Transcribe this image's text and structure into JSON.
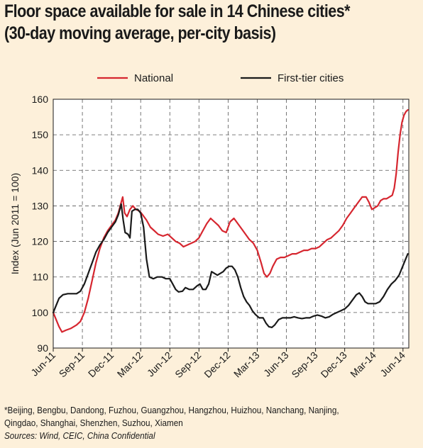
{
  "header": {
    "title_line1": "Floor space available for sale in 14 Chinese cities*",
    "title_line2": "(30-day moving average, per-city basis)"
  },
  "footer": {
    "footnote_line1": "*Beijing, Bengbu, Dandong, Fuzhou, Guangzhou, Hangzhou, Huizhou, Nanchang, Nanjing,",
    "footnote_line2": "Qingdao, Shanghai, Shenzhen, Suzhou, Xiamen",
    "sources": "Sources: Wind, CEIC, China Confidential"
  },
  "colors": {
    "national": "#d6262f",
    "first_tier": "#1a1a1a",
    "background": "#fdf0da"
  },
  "chart_data": {
    "type": "line",
    "title": "Floor space available for sale in 14 Chinese cities*",
    "subtitle": "(30-day moving average, per-city basis)",
    "ylabel": "Index (Jun 2011 = 100)",
    "xlabel": "",
    "ylim": [
      90,
      160
    ],
    "yticks": [
      90,
      100,
      110,
      120,
      130,
      140,
      150,
      160
    ],
    "xlim": [
      0,
      36.6
    ],
    "xticks": [
      {
        "label": "Jun-11",
        "x": 0
      },
      {
        "label": "Sep-11",
        "x": 3
      },
      {
        "label": "Dec-11",
        "x": 6
      },
      {
        "label": "Mar-12",
        "x": 9
      },
      {
        "label": "Jun-12",
        "x": 12
      },
      {
        "label": "Sep-12",
        "x": 15
      },
      {
        "label": "Dec-12",
        "x": 18
      },
      {
        "label": "Mar-13",
        "x": 21
      },
      {
        "label": "Jun-13",
        "x": 24
      },
      {
        "label": "Sep-13",
        "x": 27
      },
      {
        "label": "Dec-13",
        "x": 30
      },
      {
        "label": "Mar-14",
        "x": 33
      },
      {
        "label": "Jun-14",
        "x": 36
      }
    ],
    "grid": true,
    "legend_position": "top",
    "series": [
      {
        "name": "National",
        "color": "#d6262f",
        "points": [
          [
            0,
            100
          ],
          [
            0.3,
            98
          ],
          [
            0.6,
            96
          ],
          [
            0.9,
            94.5
          ],
          [
            1.3,
            95
          ],
          [
            1.8,
            95.5
          ],
          [
            2.4,
            96.5
          ],
          [
            2.8,
            97.5
          ],
          [
            3.2,
            100
          ],
          [
            3.6,
            104
          ],
          [
            4,
            109
          ],
          [
            4.4,
            114
          ],
          [
            4.8,
            118
          ],
          [
            5.2,
            121
          ],
          [
            5.6,
            123
          ],
          [
            6,
            124.5
          ],
          [
            6.4,
            126
          ],
          [
            6.7,
            128
          ],
          [
            7.0,
            131
          ],
          [
            7.15,
            132.5
          ],
          [
            7.35,
            128
          ],
          [
            7.6,
            127
          ],
          [
            7.9,
            129
          ],
          [
            8.2,
            130
          ],
          [
            8.5,
            129
          ],
          [
            8.9,
            128.5
          ],
          [
            9.2,
            127.5
          ],
          [
            9.6,
            126
          ],
          [
            10,
            124
          ],
          [
            10.4,
            123
          ],
          [
            10.8,
            122
          ],
          [
            11.3,
            121.5
          ],
          [
            11.8,
            122
          ],
          [
            12.2,
            121
          ],
          [
            12.6,
            120
          ],
          [
            13,
            119.5
          ],
          [
            13.4,
            118.5
          ],
          [
            13.8,
            119
          ],
          [
            14.2,
            119.5
          ],
          [
            14.6,
            120
          ],
          [
            15,
            121
          ],
          [
            15.4,
            123
          ],
          [
            15.8,
            125
          ],
          [
            16.2,
            126.5
          ],
          [
            16.6,
            125.5
          ],
          [
            17,
            124.5
          ],
          [
            17.4,
            123
          ],
          [
            17.8,
            122.5
          ],
          [
            18.2,
            125.5
          ],
          [
            18.6,
            126.5
          ],
          [
            19,
            125
          ],
          [
            19.4,
            123.5
          ],
          [
            19.8,
            122
          ],
          [
            20.2,
            120.5
          ],
          [
            20.6,
            119.5
          ],
          [
            21,
            117.5
          ],
          [
            21.4,
            114
          ],
          [
            21.7,
            111
          ],
          [
            22,
            110
          ],
          [
            22.3,
            111
          ],
          [
            22.6,
            113
          ],
          [
            23,
            115
          ],
          [
            23.4,
            115.5
          ],
          [
            23.8,
            115.5
          ],
          [
            24.2,
            116
          ],
          [
            24.6,
            116.5
          ],
          [
            25,
            116.5
          ],
          [
            25.4,
            117
          ],
          [
            25.8,
            117.5
          ],
          [
            26.2,
            117.5
          ],
          [
            26.6,
            118
          ],
          [
            27,
            118
          ],
          [
            27.4,
            118.5
          ],
          [
            27.8,
            119.5
          ],
          [
            28.2,
            120.5
          ],
          [
            28.6,
            121
          ],
          [
            29,
            122
          ],
          [
            29.4,
            123
          ],
          [
            29.8,
            124.5
          ],
          [
            30.2,
            126.5
          ],
          [
            30.6,
            128
          ],
          [
            31,
            129.5
          ],
          [
            31.4,
            131
          ],
          [
            31.8,
            132.5
          ],
          [
            32.2,
            132.5
          ],
          [
            32.5,
            131
          ],
          [
            32.8,
            129
          ],
          [
            33.1,
            129.5
          ],
          [
            33.4,
            130
          ],
          [
            33.7,
            131.5
          ],
          [
            34,
            132
          ],
          [
            34.3,
            132
          ],
          [
            34.6,
            132.5
          ],
          [
            34.9,
            133
          ],
          [
            35.1,
            135
          ],
          [
            35.3,
            139
          ],
          [
            35.5,
            145
          ],
          [
            35.7,
            150
          ],
          [
            35.9,
            153.5
          ],
          [
            36.1,
            155.5
          ],
          [
            36.3,
            156.5
          ],
          [
            36.5,
            157
          ]
        ]
      },
      {
        "name": "First-tier cities",
        "color": "#1a1a1a",
        "points": [
          [
            0,
            100
          ],
          [
            0.3,
            102
          ],
          [
            0.6,
            104
          ],
          [
            1.0,
            105
          ],
          [
            1.5,
            105.3
          ],
          [
            2,
            105.3
          ],
          [
            2.4,
            105.3
          ],
          [
            2.8,
            106
          ],
          [
            3.2,
            108
          ],
          [
            3.6,
            111
          ],
          [
            4,
            114
          ],
          [
            4.4,
            117
          ],
          [
            4.8,
            119
          ],
          [
            5.2,
            120.5
          ],
          [
            5.6,
            122.5
          ],
          [
            6,
            124
          ],
          [
            6.4,
            125.5
          ],
          [
            6.7,
            127.5
          ],
          [
            7.0,
            130.5
          ],
          [
            7.2,
            126
          ],
          [
            7.4,
            122.5
          ],
          [
            7.7,
            122
          ],
          [
            7.9,
            121
          ],
          [
            8.1,
            128.5
          ],
          [
            8.4,
            129
          ],
          [
            8.7,
            129
          ],
          [
            9.0,
            128
          ],
          [
            9.3,
            124
          ],
          [
            9.6,
            115
          ],
          [
            9.9,
            110
          ],
          [
            10.3,
            109.5
          ],
          [
            10.7,
            110
          ],
          [
            11.2,
            110
          ],
          [
            11.6,
            109.5
          ],
          [
            12,
            109.5
          ],
          [
            12.3,
            108
          ],
          [
            12.6,
            106.5
          ],
          [
            12.9,
            105.8
          ],
          [
            13.3,
            106
          ],
          [
            13.6,
            107
          ],
          [
            14,
            106.5
          ],
          [
            14.4,
            106.5
          ],
          [
            14.8,
            107.5
          ],
          [
            15.1,
            108
          ],
          [
            15.4,
            106.5
          ],
          [
            15.7,
            106.5
          ],
          [
            16.0,
            108
          ],
          [
            16.3,
            111.5
          ],
          [
            16.6,
            111
          ],
          [
            16.9,
            110.5
          ],
          [
            17.2,
            111
          ],
          [
            17.5,
            111.5
          ],
          [
            17.8,
            112.5
          ],
          [
            18.1,
            113
          ],
          [
            18.4,
            113
          ],
          [
            18.7,
            112
          ],
          [
            19,
            110
          ],
          [
            19.3,
            107
          ],
          [
            19.6,
            104.5
          ],
          [
            19.9,
            103
          ],
          [
            20.2,
            102
          ],
          [
            20.5,
            100.5
          ],
          [
            20.8,
            99.5
          ],
          [
            21.2,
            98.5
          ],
          [
            21.6,
            98.5
          ],
          [
            21.9,
            97
          ],
          [
            22.2,
            96
          ],
          [
            22.5,
            95.8
          ],
          [
            22.8,
            96.5
          ],
          [
            23.2,
            98
          ],
          [
            23.6,
            98.5
          ],
          [
            24,
            98.5
          ],
          [
            24.4,
            98.5
          ],
          [
            24.8,
            98.8
          ],
          [
            25.2,
            98.5
          ],
          [
            25.6,
            98.3
          ],
          [
            26,
            98.5
          ],
          [
            26.4,
            98.5
          ],
          [
            26.8,
            99
          ],
          [
            27.2,
            99.3
          ],
          [
            27.6,
            99
          ],
          [
            28,
            98.5
          ],
          [
            28.4,
            98.8
          ],
          [
            28.8,
            99.5
          ],
          [
            29.2,
            100
          ],
          [
            29.6,
            100.5
          ],
          [
            30,
            101
          ],
          [
            30.4,
            102
          ],
          [
            30.8,
            103.5
          ],
          [
            31.2,
            105
          ],
          [
            31.5,
            105.5
          ],
          [
            31.8,
            104.5
          ],
          [
            32.1,
            103
          ],
          [
            32.4,
            102.5
          ],
          [
            32.8,
            102.5
          ],
          [
            33.2,
            102.5
          ],
          [
            33.6,
            103
          ],
          [
            34,
            104.5
          ],
          [
            34.4,
            106.5
          ],
          [
            34.8,
            108
          ],
          [
            35.2,
            109
          ],
          [
            35.6,
            110.5
          ],
          [
            35.9,
            112.5
          ],
          [
            36.2,
            114.5
          ],
          [
            36.5,
            116.5
          ]
        ]
      }
    ]
  }
}
